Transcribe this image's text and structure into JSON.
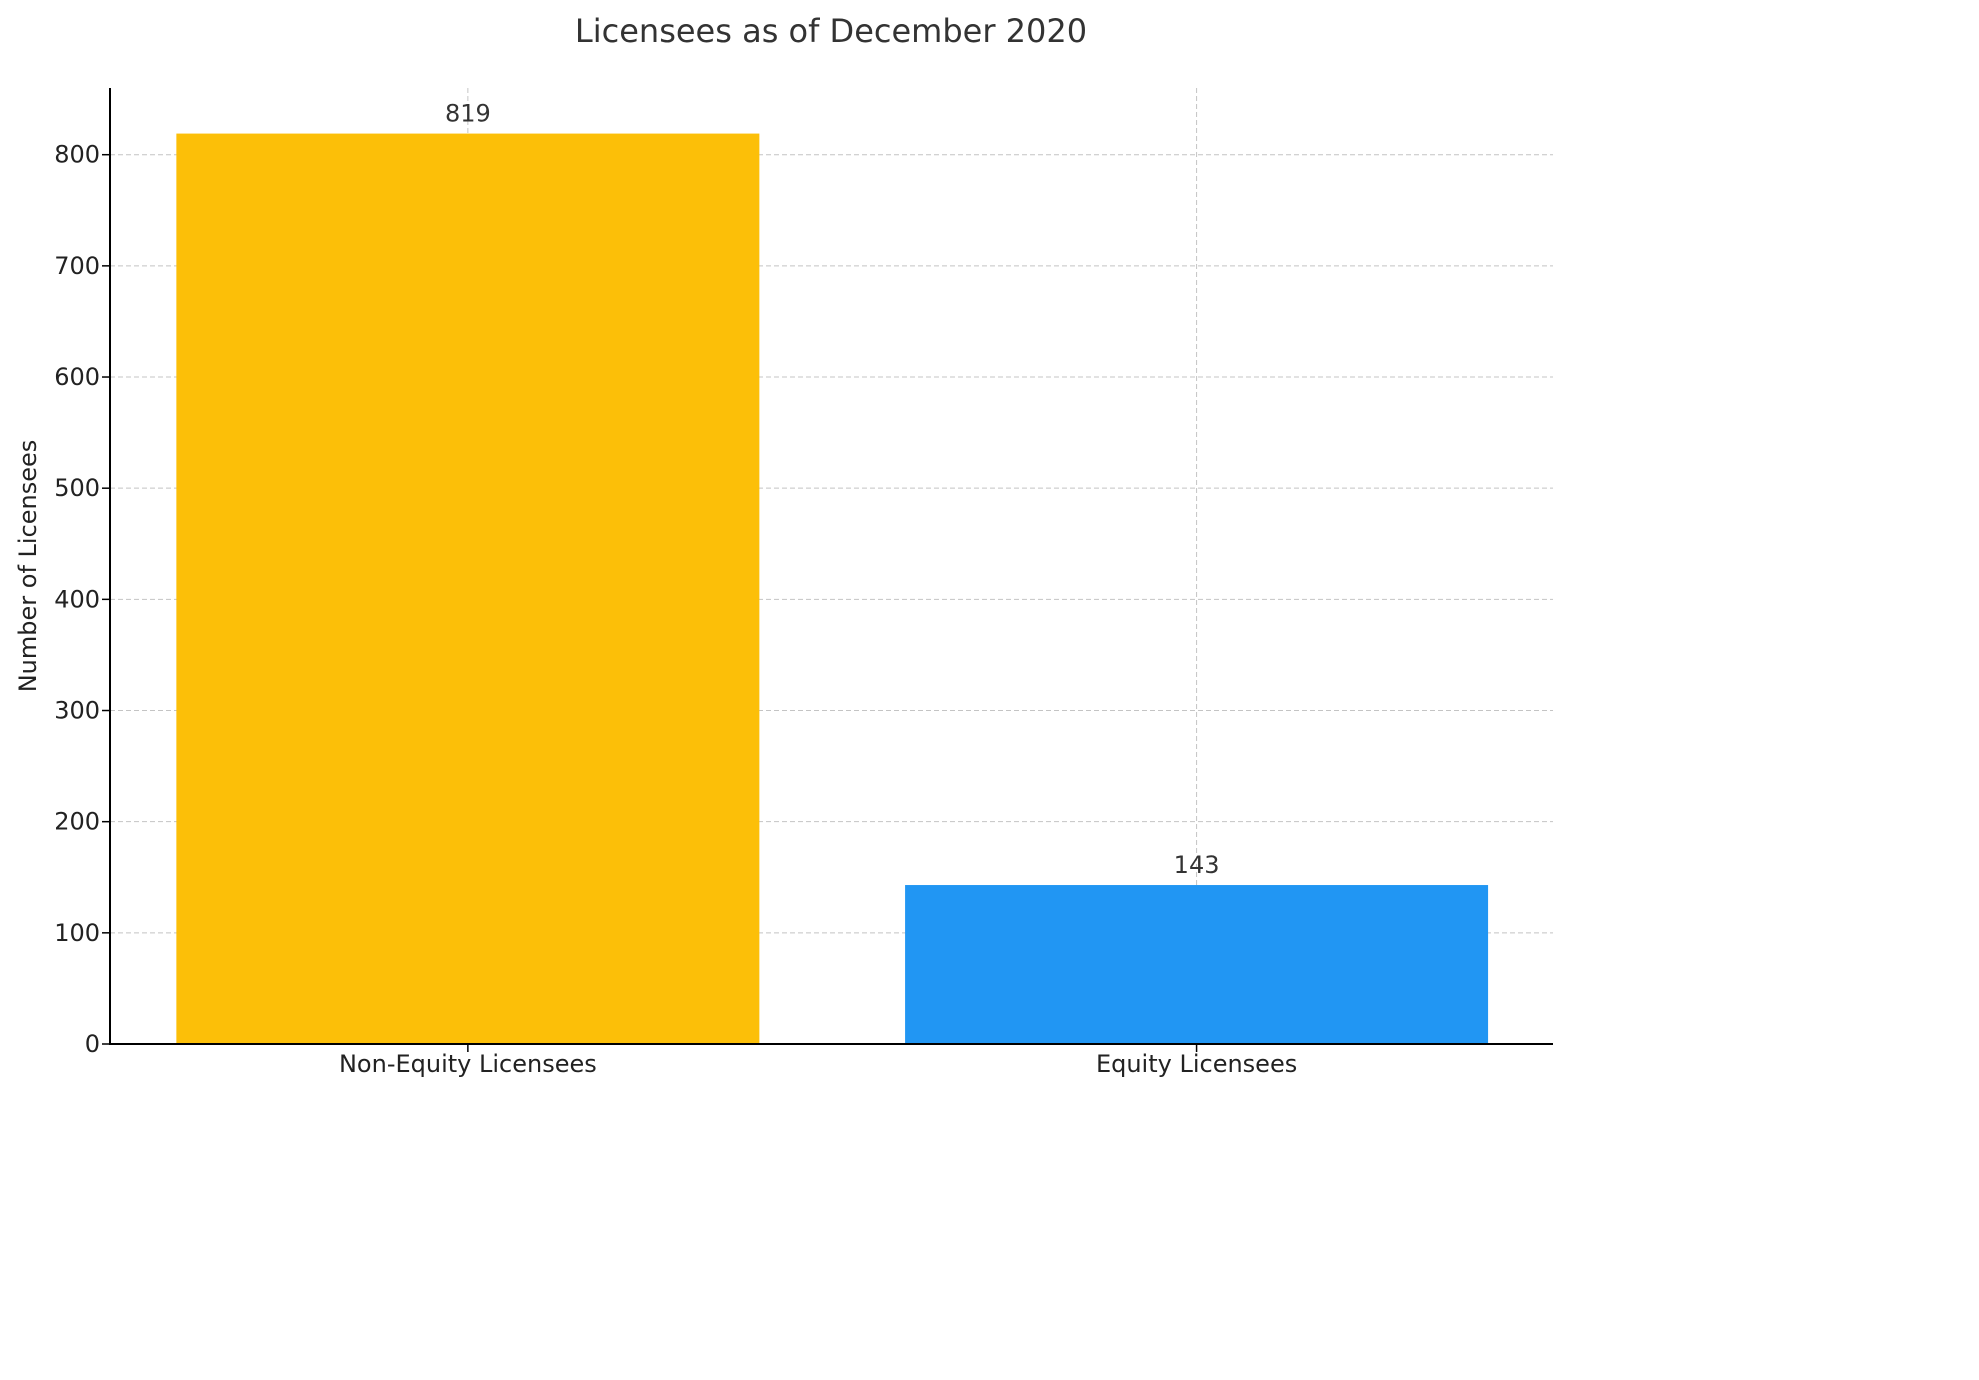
{
  "chart_data": {
    "type": "bar",
    "title": "Licensees as of December 2020",
    "xlabel": "",
    "ylabel": "Number of Licensees",
    "categories": [
      "Non-Equity Licensees",
      "Equity Licensees"
    ],
    "values": [
      819,
      143
    ],
    "value_labels": [
      "819",
      "143"
    ],
    "colors": [
      "#FCBF08",
      "#2196F3"
    ],
    "ylim": [
      0,
      860
    ],
    "yticks": [
      0,
      100,
      200,
      300,
      400,
      500,
      600,
      700,
      800
    ],
    "grid": true
  }
}
